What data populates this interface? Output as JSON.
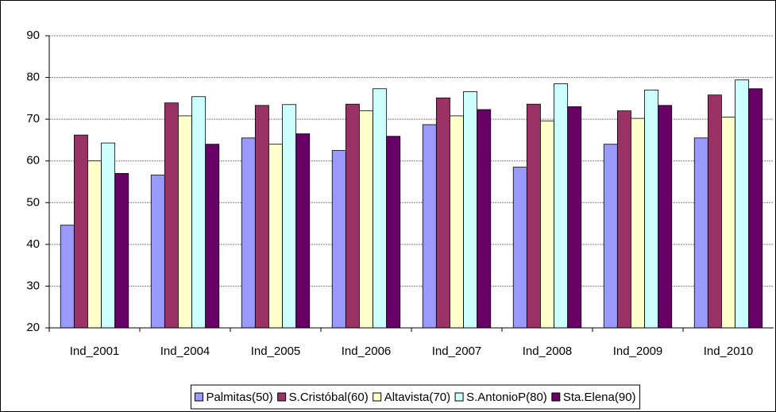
{
  "chart_data": {
    "type": "bar",
    "categories": [
      "Ind_2001",
      "Ind_2004",
      "Ind_2005",
      "Ind_2006",
      "Ind_2007",
      "Ind_2008",
      "Ind_2009",
      "Ind_2010"
    ],
    "series": [
      {
        "name": "Palmitas(50)",
        "color": "#9999ff",
        "values": [
          44.6,
          56.6,
          65.5,
          62.5,
          68.7,
          58.5,
          64,
          65.5
        ]
      },
      {
        "name": "S.Cristóbal(60)",
        "color": "#993366",
        "values": [
          66.2,
          73.9,
          73.3,
          73.6,
          75.1,
          73.6,
          72,
          75.8
        ]
      },
      {
        "name": "Altavista(70)",
        "color": "#ffffcc",
        "values": [
          60,
          70.8,
          64,
          72,
          70.8,
          69.6,
          70.2,
          70.5
        ]
      },
      {
        "name": "S.AntonioP(80)",
        "color": "#ccffff",
        "values": [
          64.3,
          75.4,
          73.5,
          77.3,
          76.6,
          78.5,
          77,
          79.4
        ]
      },
      {
        "name": "Sta.Elena(90)",
        "color": "#660066",
        "values": [
          57,
          64,
          66.5,
          65.9,
          72.3,
          73,
          73.3,
          77.3
        ]
      }
    ],
    "ylim": [
      20,
      90
    ],
    "yticks": [
      20,
      30,
      40,
      50,
      60,
      70,
      80,
      90
    ],
    "grid": true,
    "legend": "bottom"
  }
}
